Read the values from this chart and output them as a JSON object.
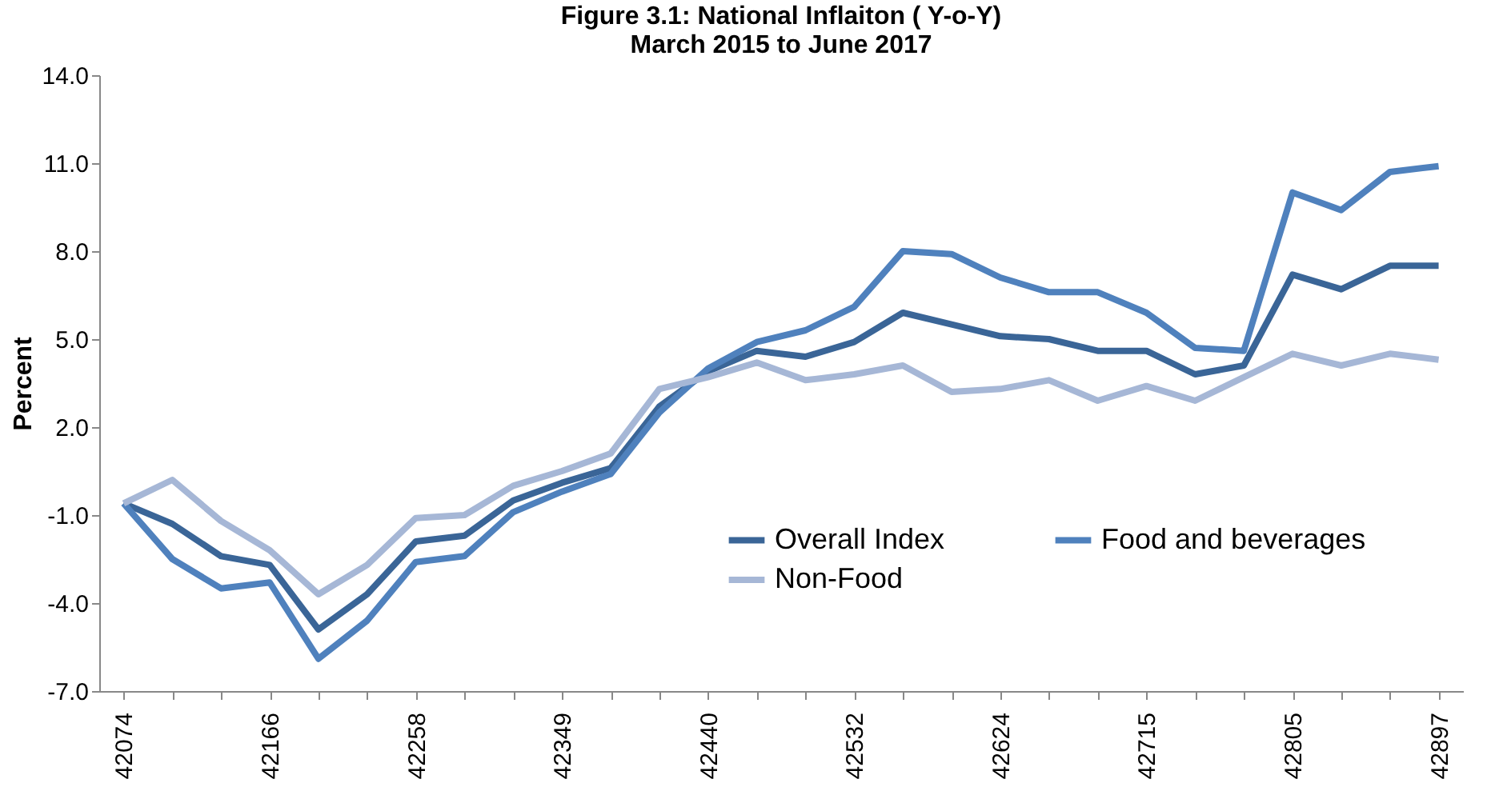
{
  "chart_data": {
    "type": "line",
    "title": [
      "Figure 3.1: National Inflaiton ( Y-o-Y)",
      "March 2015  to June 2017"
    ],
    "ylabel": "Percent",
    "categories": [
      "42074",
      null,
      null,
      "42166",
      null,
      null,
      "42258",
      null,
      null,
      "42349",
      null,
      null,
      "42440",
      null,
      null,
      "42532",
      null,
      null,
      "42624",
      null,
      null,
      "42715",
      null,
      null,
      "42805",
      null,
      null,
      "42897"
    ],
    "series": [
      {
        "name": "Overall Index",
        "color": "#3a6597",
        "values": [
          -0.6,
          -1.3,
          -2.4,
          -2.7,
          -4.9,
          -3.7,
          -1.9,
          -1.7,
          -0.5,
          0.1,
          0.6,
          2.7,
          3.9,
          4.6,
          4.4,
          4.9,
          5.9,
          5.5,
          5.1,
          5.0,
          4.6,
          4.6,
          3.8,
          4.1,
          7.2,
          6.7,
          7.5,
          7.5
        ]
      },
      {
        "name": "Food and beverages",
        "color": "#4f81bd",
        "values": [
          -0.6,
          -2.5,
          -3.5,
          -3.3,
          -5.9,
          -4.6,
          -2.6,
          -2.4,
          -0.9,
          -0.2,
          0.4,
          2.5,
          4.0,
          4.9,
          5.3,
          6.1,
          8.0,
          7.9,
          7.1,
          6.6,
          6.6,
          5.9,
          4.7,
          4.6,
          10.0,
          9.4,
          10.7,
          10.9
        ]
      },
      {
        "name": "Non-Food",
        "color": "#a6b7d6",
        "values": [
          -0.6,
          0.2,
          -1.2,
          -2.2,
          -3.7,
          -2.7,
          -1.1,
          -1.0,
          0.0,
          0.5,
          1.1,
          3.3,
          3.7,
          4.2,
          3.6,
          3.8,
          4.1,
          3.2,
          3.3,
          3.6,
          2.9,
          3.4,
          2.9,
          3.7,
          4.5,
          4.1,
          4.5,
          4.3
        ]
      }
    ],
    "ylim": [
      -7,
      14
    ],
    "yticks": [
      {
        "value": -7,
        "label": "-7.0"
      },
      {
        "value": -4,
        "label": "-4.0"
      },
      {
        "value": -1,
        "label": "-1.0"
      },
      {
        "value": 2,
        "label": "2.0"
      },
      {
        "value": 5,
        "label": "5.0"
      },
      {
        "value": 8,
        "label": "8.0"
      },
      {
        "value": 11,
        "label": "11.0"
      },
      {
        "value": 14,
        "label": "14.0"
      }
    ],
    "grid": false,
    "legend": "bottom right",
    "marker": "none",
    "line_style": "solid"
  }
}
